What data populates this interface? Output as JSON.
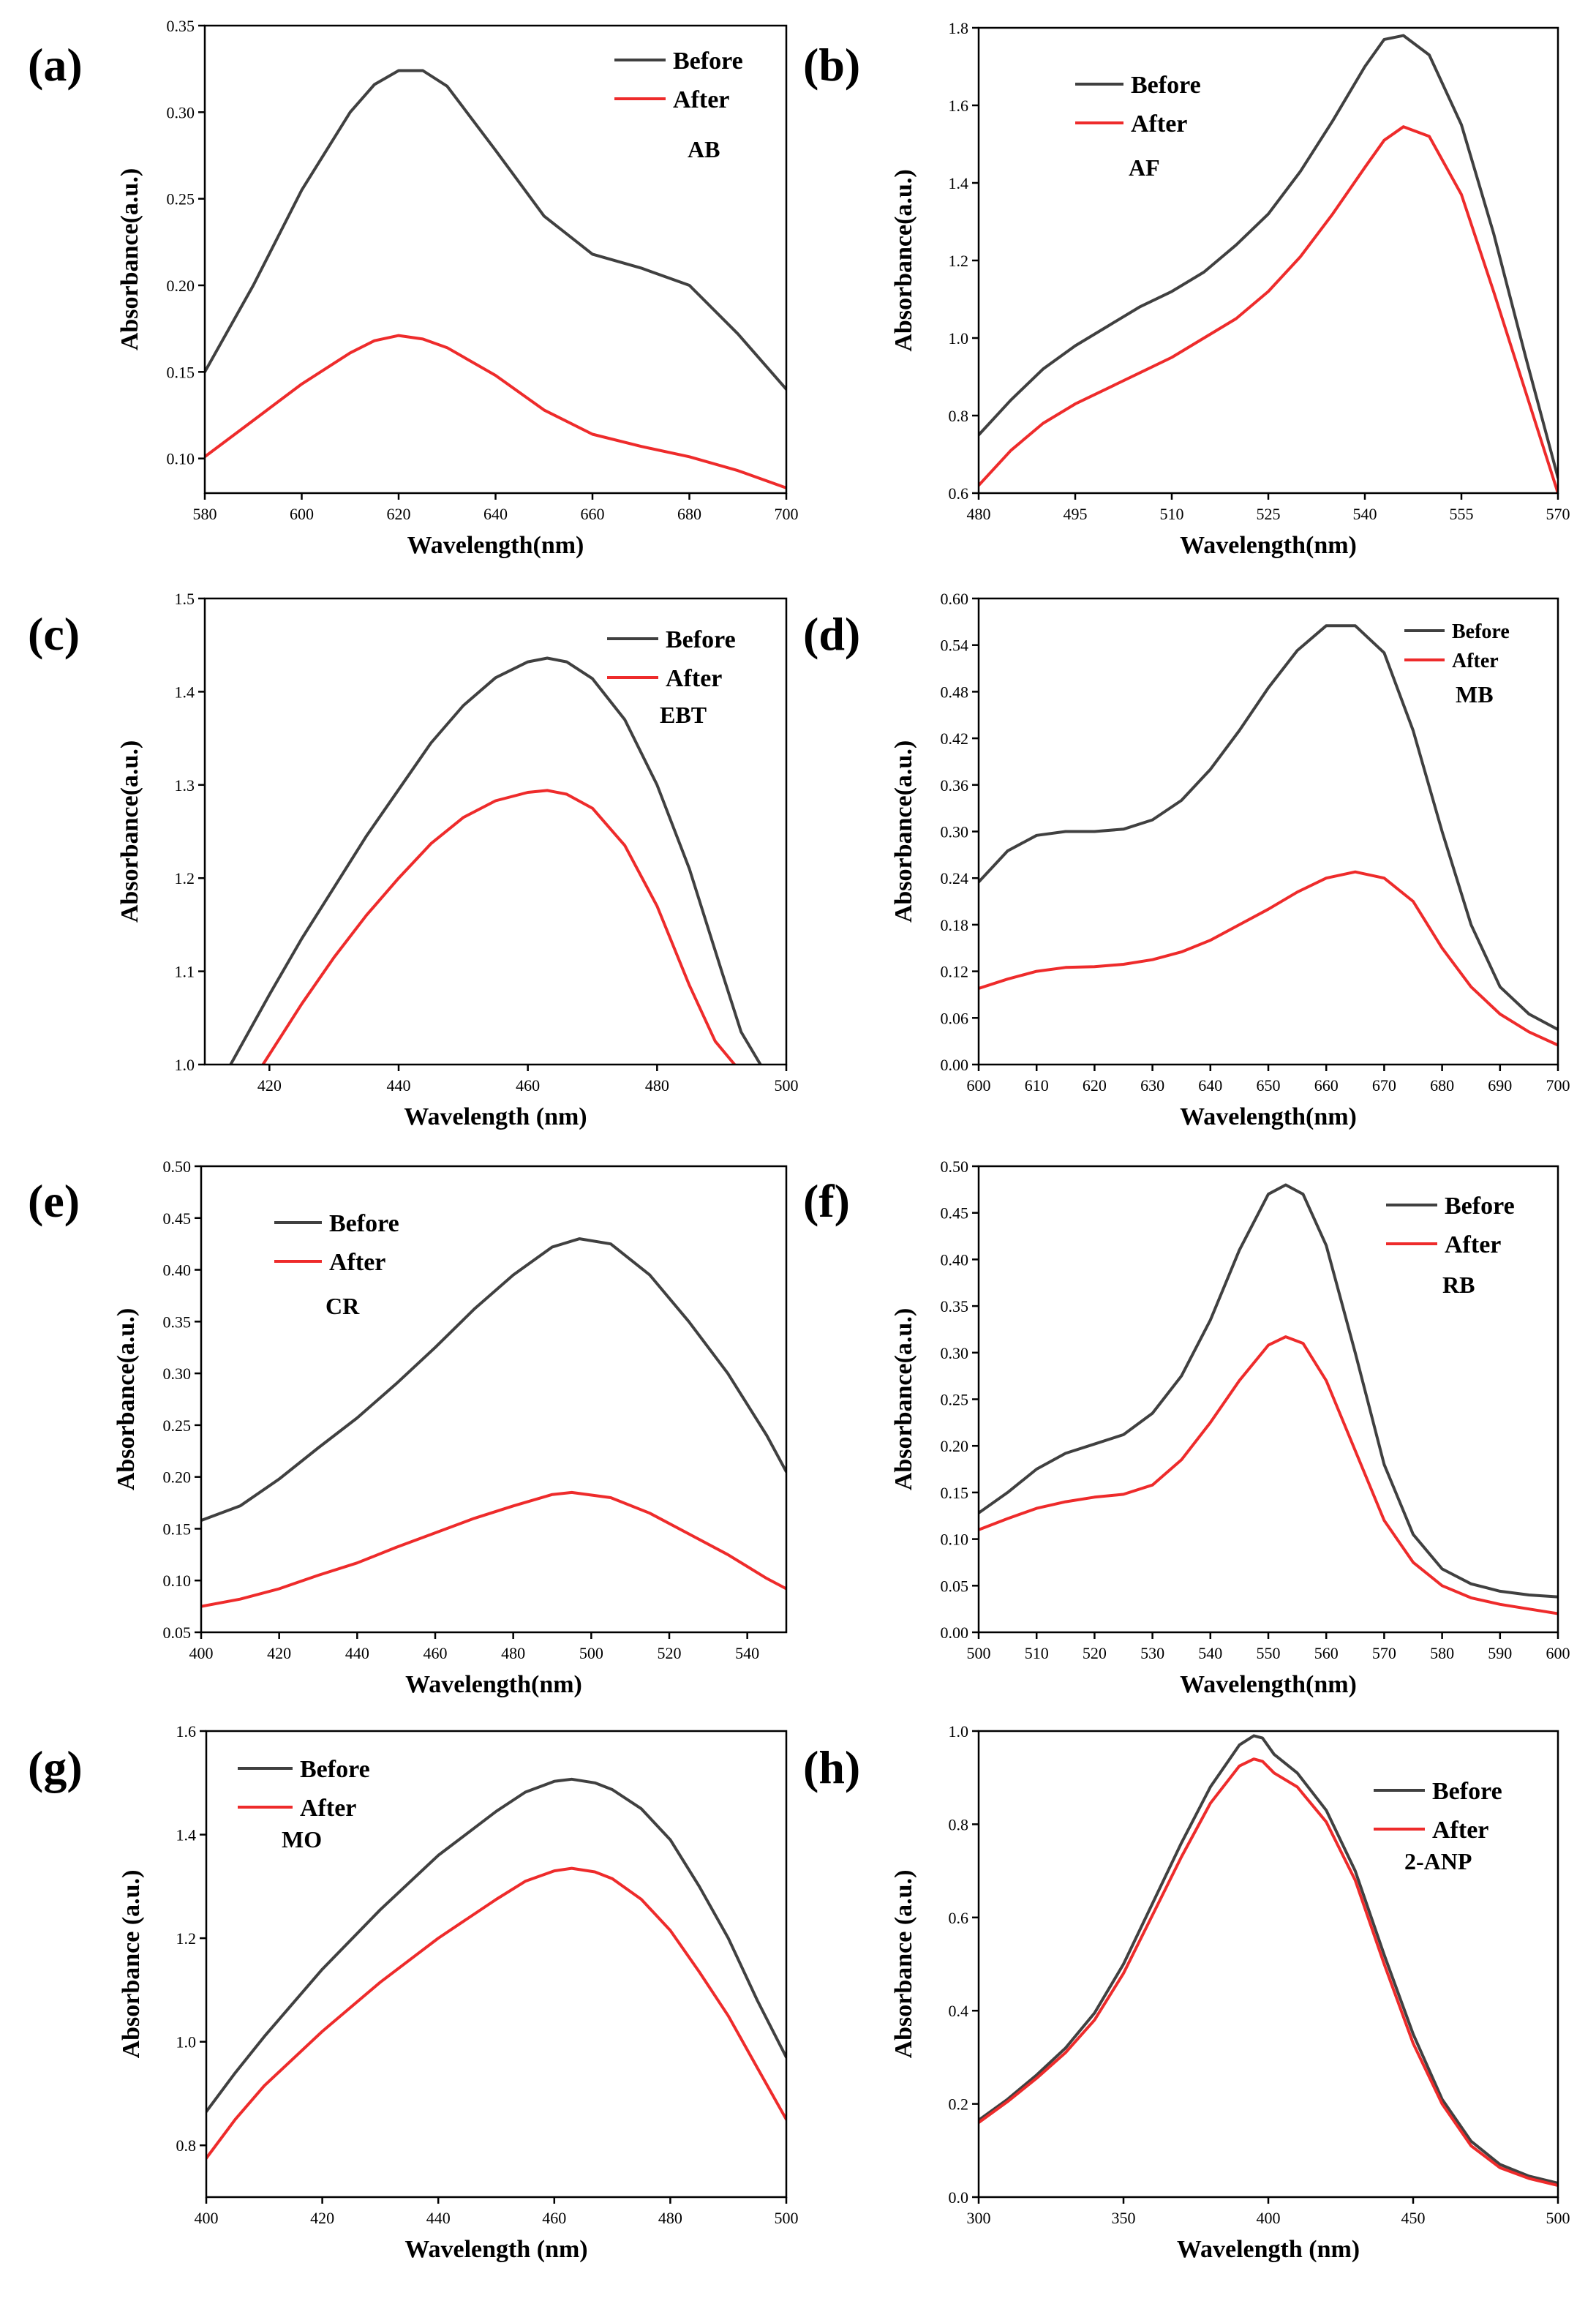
{
  "colors": {
    "before": "#404040",
    "after": "#ee2b2b",
    "axis": "#000000"
  },
  "chart_data": [
    {
      "id": "a",
      "type": "line",
      "panel_label": "(a)",
      "dye": "AB",
      "xlabel": "Wavelength(nm)",
      "ylabel": "Absorbance(a.u.)",
      "xlim": [
        580,
        700
      ],
      "ylim": [
        0.08,
        0.35
      ],
      "xticks": [
        580,
        600,
        620,
        640,
        660,
        680,
        700
      ],
      "yticks": [
        0.1,
        0.15,
        0.2,
        0.25,
        0.3,
        0.35
      ],
      "xdecimals": 0,
      "ydecimals": 2,
      "legend_position": "top-right",
      "series": [
        {
          "name": "Before",
          "x": [
            580,
            590,
            600,
            610,
            615,
            620,
            625,
            630,
            640,
            650,
            660,
            670,
            680,
            690,
            700
          ],
          "y": [
            0.15,
            0.2,
            0.255,
            0.3,
            0.316,
            0.324,
            0.324,
            0.315,
            0.278,
            0.24,
            0.218,
            0.21,
            0.2,
            0.172,
            0.14
          ]
        },
        {
          "name": "After",
          "x": [
            580,
            590,
            600,
            610,
            615,
            620,
            625,
            630,
            640,
            650,
            660,
            670,
            680,
            690,
            700
          ],
          "y": [
            0.101,
            0.122,
            0.143,
            0.161,
            0.168,
            0.171,
            0.169,
            0.164,
            0.148,
            0.128,
            0.114,
            0.107,
            0.101,
            0.093,
            0.083
          ]
        }
      ]
    },
    {
      "id": "b",
      "type": "line",
      "panel_label": "(b)",
      "dye": "AF",
      "xlabel": "Wavelength(nm)",
      "ylabel": "Absorbance(a.u.)",
      "xlim": [
        480,
        570
      ],
      "ylim": [
        0.6,
        1.8
      ],
      "xticks": [
        480,
        495,
        510,
        525,
        540,
        555,
        570
      ],
      "yticks": [
        0.6,
        0.8,
        1.0,
        1.2,
        1.4,
        1.6,
        1.8
      ],
      "xdecimals": 0,
      "ydecimals": 1,
      "legend_position": "top-left",
      "series": [
        {
          "name": "Before",
          "x": [
            480,
            485,
            490,
            495,
            500,
            505,
            510,
            515,
            520,
            525,
            530,
            535,
            540,
            543,
            546,
            550,
            555,
            560,
            565,
            570
          ],
          "y": [
            0.75,
            0.84,
            0.92,
            0.98,
            1.03,
            1.08,
            1.12,
            1.17,
            1.24,
            1.32,
            1.43,
            1.56,
            1.7,
            1.77,
            1.78,
            1.73,
            1.55,
            1.27,
            0.95,
            0.64
          ]
        },
        {
          "name": "After",
          "x": [
            480,
            485,
            490,
            495,
            500,
            505,
            510,
            515,
            520,
            525,
            530,
            535,
            540,
            543,
            546,
            550,
            555,
            560,
            565,
            570
          ],
          "y": [
            0.62,
            0.71,
            0.78,
            0.83,
            0.87,
            0.91,
            0.95,
            1.0,
            1.05,
            1.12,
            1.21,
            1.32,
            1.44,
            1.51,
            1.545,
            1.52,
            1.37,
            1.12,
            0.86,
            0.6
          ]
        }
      ]
    },
    {
      "id": "c",
      "type": "line",
      "panel_label": "(c)",
      "dye": "EBT",
      "xlabel": "Wavelength (nm)",
      "ylabel": "Absorbance(a.u.)",
      "xlim": [
        410,
        500
      ],
      "ylim": [
        1.0,
        1.5
      ],
      "xticks": [
        420,
        440,
        460,
        480,
        500
      ],
      "yticks": [
        1.0,
        1.1,
        1.2,
        1.3,
        1.4,
        1.5
      ],
      "xdecimals": 0,
      "ydecimals": 1,
      "legend_position": "top-right",
      "series": [
        {
          "name": "Before",
          "x": [
            414,
            420,
            425,
            430,
            435,
            440,
            445,
            450,
            455,
            460,
            463,
            466,
            470,
            475,
            480,
            485,
            490,
            493,
            496
          ],
          "y": [
            1.0,
            1.075,
            1.135,
            1.19,
            1.245,
            1.295,
            1.345,
            1.385,
            1.415,
            1.432,
            1.436,
            1.432,
            1.414,
            1.37,
            1.3,
            1.21,
            1.1,
            1.035,
            1.0
          ]
        },
        {
          "name": "After",
          "x": [
            419,
            425,
            430,
            435,
            440,
            445,
            450,
            455,
            460,
            463,
            466,
            470,
            475,
            480,
            485,
            489,
            492
          ],
          "y": [
            1.0,
            1.065,
            1.115,
            1.16,
            1.2,
            1.237,
            1.265,
            1.283,
            1.292,
            1.294,
            1.29,
            1.275,
            1.235,
            1.17,
            1.085,
            1.025,
            1.0
          ]
        }
      ]
    },
    {
      "id": "d",
      "type": "line",
      "panel_label": "(d)",
      "dye": "MB",
      "xlabel": "Wavelength(nm)",
      "ylabel": "Absorbance(a.u.)",
      "xlim": [
        600,
        700
      ],
      "ylim": [
        0.0,
        0.6
      ],
      "xticks": [
        600,
        610,
        620,
        630,
        640,
        650,
        660,
        670,
        680,
        690,
        700
      ],
      "yticks": [
        0.0,
        0.06,
        0.12,
        0.18,
        0.24,
        0.3,
        0.36,
        0.42,
        0.48,
        0.54,
        0.6
      ],
      "xdecimals": 0,
      "ydecimals": 2,
      "legend_position": "top-right",
      "series": [
        {
          "name": "Before",
          "x": [
            600,
            605,
            610,
            615,
            620,
            625,
            630,
            635,
            640,
            645,
            650,
            655,
            660,
            665,
            670,
            675,
            680,
            685,
            690,
            695,
            700
          ],
          "y": [
            0.235,
            0.275,
            0.295,
            0.3,
            0.3,
            0.303,
            0.315,
            0.34,
            0.38,
            0.43,
            0.485,
            0.533,
            0.565,
            0.565,
            0.53,
            0.43,
            0.3,
            0.18,
            0.1,
            0.065,
            0.045
          ]
        },
        {
          "name": "After",
          "x": [
            600,
            605,
            610,
            615,
            620,
            625,
            630,
            635,
            640,
            645,
            650,
            655,
            660,
            665,
            670,
            675,
            680,
            685,
            690,
            695,
            700
          ],
          "y": [
            0.098,
            0.11,
            0.12,
            0.125,
            0.126,
            0.129,
            0.135,
            0.145,
            0.16,
            0.18,
            0.2,
            0.222,
            0.24,
            0.248,
            0.24,
            0.21,
            0.15,
            0.1,
            0.065,
            0.042,
            0.025
          ]
        }
      ]
    },
    {
      "id": "e",
      "type": "line",
      "panel_label": "(e)",
      "dye": "CR",
      "xlabel": "Wavelength(nm)",
      "ylabel": "Absorbance(a.u.)",
      "xlim": [
        400,
        550
      ],
      "ylim": [
        0.05,
        0.5
      ],
      "xticks": [
        400,
        420,
        440,
        460,
        480,
        500,
        520,
        540
      ],
      "yticks": [
        0.05,
        0.1,
        0.15,
        0.2,
        0.25,
        0.3,
        0.35,
        0.4,
        0.45,
        0.5
      ],
      "xdecimals": 0,
      "ydecimals": 2,
      "legend_position": "top-left",
      "series": [
        {
          "name": "Before",
          "x": [
            400,
            410,
            420,
            430,
            440,
            450,
            460,
            470,
            480,
            490,
            497,
            505,
            515,
            525,
            535,
            545,
            550
          ],
          "y": [
            0.158,
            0.172,
            0.198,
            0.228,
            0.257,
            0.29,
            0.325,
            0.362,
            0.395,
            0.422,
            0.43,
            0.425,
            0.395,
            0.35,
            0.3,
            0.24,
            0.205
          ]
        },
        {
          "name": "After",
          "x": [
            400,
            410,
            420,
            430,
            440,
            450,
            460,
            470,
            480,
            490,
            495,
            505,
            515,
            525,
            535,
            545,
            550
          ],
          "y": [
            0.075,
            0.082,
            0.092,
            0.105,
            0.117,
            0.132,
            0.146,
            0.16,
            0.172,
            0.183,
            0.185,
            0.18,
            0.165,
            0.145,
            0.125,
            0.102,
            0.092
          ]
        }
      ]
    },
    {
      "id": "f",
      "type": "line",
      "panel_label": "(f)",
      "dye": "RB",
      "xlabel": "Wavelength(nm)",
      "ylabel": "Absorbance(a.u.)",
      "xlim": [
        500,
        600
      ],
      "ylim": [
        0.0,
        0.5
      ],
      "xticks": [
        500,
        510,
        520,
        530,
        540,
        550,
        560,
        570,
        580,
        590,
        600
      ],
      "yticks": [
        0.0,
        0.05,
        0.1,
        0.15,
        0.2,
        0.25,
        0.3,
        0.35,
        0.4,
        0.45,
        0.5
      ],
      "xdecimals": 0,
      "ydecimals": 2,
      "legend_position": "top-right",
      "series": [
        {
          "name": "Before",
          "x": [
            500,
            505,
            510,
            515,
            520,
            525,
            530,
            535,
            540,
            545,
            550,
            553,
            556,
            560,
            565,
            570,
            575,
            580,
            585,
            590,
            595,
            600
          ],
          "y": [
            0.128,
            0.15,
            0.175,
            0.192,
            0.202,
            0.212,
            0.235,
            0.275,
            0.335,
            0.41,
            0.47,
            0.48,
            0.47,
            0.415,
            0.3,
            0.18,
            0.105,
            0.068,
            0.052,
            0.044,
            0.04,
            0.038
          ]
        },
        {
          "name": "After",
          "x": [
            500,
            505,
            510,
            515,
            520,
            525,
            530,
            535,
            540,
            545,
            550,
            553,
            556,
            560,
            565,
            570,
            575,
            580,
            585,
            590,
            595,
            600
          ],
          "y": [
            0.11,
            0.122,
            0.133,
            0.14,
            0.145,
            0.148,
            0.158,
            0.185,
            0.225,
            0.27,
            0.308,
            0.317,
            0.31,
            0.27,
            0.195,
            0.12,
            0.075,
            0.05,
            0.037,
            0.03,
            0.025,
            0.02
          ]
        }
      ]
    },
    {
      "id": "g",
      "type": "line",
      "panel_label": "(g)",
      "dye": "MO",
      "xlabel": "Wavelength (nm)",
      "ylabel": "Absorbance (a.u.)",
      "xlim": [
        400,
        500
      ],
      "ylim": [
        0.7,
        1.6
      ],
      "xticks": [
        400,
        420,
        440,
        460,
        480,
        500
      ],
      "yticks": [
        0.8,
        1.0,
        1.2,
        1.4,
        1.6
      ],
      "xdecimals": 0,
      "ydecimals": 1,
      "legend_position": "top-left",
      "series": [
        {
          "name": "Before",
          "x": [
            400,
            405,
            410,
            420,
            430,
            440,
            450,
            455,
            460,
            463,
            467,
            470,
            475,
            480,
            485,
            490,
            495,
            500
          ],
          "y": [
            0.865,
            0.94,
            1.01,
            1.14,
            1.255,
            1.36,
            1.445,
            1.482,
            1.503,
            1.507,
            1.5,
            1.487,
            1.45,
            1.39,
            1.3,
            1.2,
            1.08,
            0.97
          ]
        },
        {
          "name": "After",
          "x": [
            400,
            405,
            410,
            420,
            430,
            440,
            450,
            455,
            460,
            463,
            467,
            470,
            475,
            480,
            485,
            490,
            495,
            500
          ],
          "y": [
            0.775,
            0.85,
            0.915,
            1.02,
            1.115,
            1.2,
            1.275,
            1.31,
            1.33,
            1.335,
            1.328,
            1.315,
            1.275,
            1.215,
            1.135,
            1.05,
            0.95,
            0.85
          ]
        }
      ]
    },
    {
      "id": "h",
      "type": "line",
      "panel_label": "(h)",
      "dye": "2-ANP",
      "xlabel": "Wavelength (nm)",
      "ylabel": "Absorbance (a.u.)",
      "xlim": [
        300,
        500
      ],
      "ylim": [
        0.0,
        1.0
      ],
      "xticks": [
        300,
        350,
        400,
        450,
        500
      ],
      "yticks": [
        0.0,
        0.2,
        0.4,
        0.6,
        0.8,
        1.0
      ],
      "xdecimals": 0,
      "ydecimals": 1,
      "legend_position": "top-right",
      "series": [
        {
          "name": "Before",
          "x": [
            300,
            310,
            320,
            330,
            340,
            350,
            360,
            370,
            380,
            390,
            395,
            398,
            402,
            410,
            420,
            430,
            440,
            450,
            460,
            470,
            480,
            490,
            500
          ],
          "y": [
            0.165,
            0.21,
            0.262,
            0.32,
            0.395,
            0.5,
            0.63,
            0.76,
            0.88,
            0.97,
            0.99,
            0.985,
            0.95,
            0.91,
            0.83,
            0.7,
            0.52,
            0.35,
            0.21,
            0.12,
            0.07,
            0.045,
            0.03
          ]
        },
        {
          "name": "After",
          "x": [
            300,
            310,
            320,
            330,
            340,
            350,
            360,
            370,
            380,
            390,
            395,
            398,
            402,
            410,
            420,
            430,
            440,
            450,
            460,
            470,
            480,
            490,
            500
          ],
          "y": [
            0.16,
            0.205,
            0.255,
            0.31,
            0.38,
            0.48,
            0.605,
            0.73,
            0.845,
            0.925,
            0.94,
            0.935,
            0.91,
            0.88,
            0.805,
            0.68,
            0.5,
            0.33,
            0.2,
            0.11,
            0.063,
            0.04,
            0.025
          ]
        }
      ]
    }
  ]
}
